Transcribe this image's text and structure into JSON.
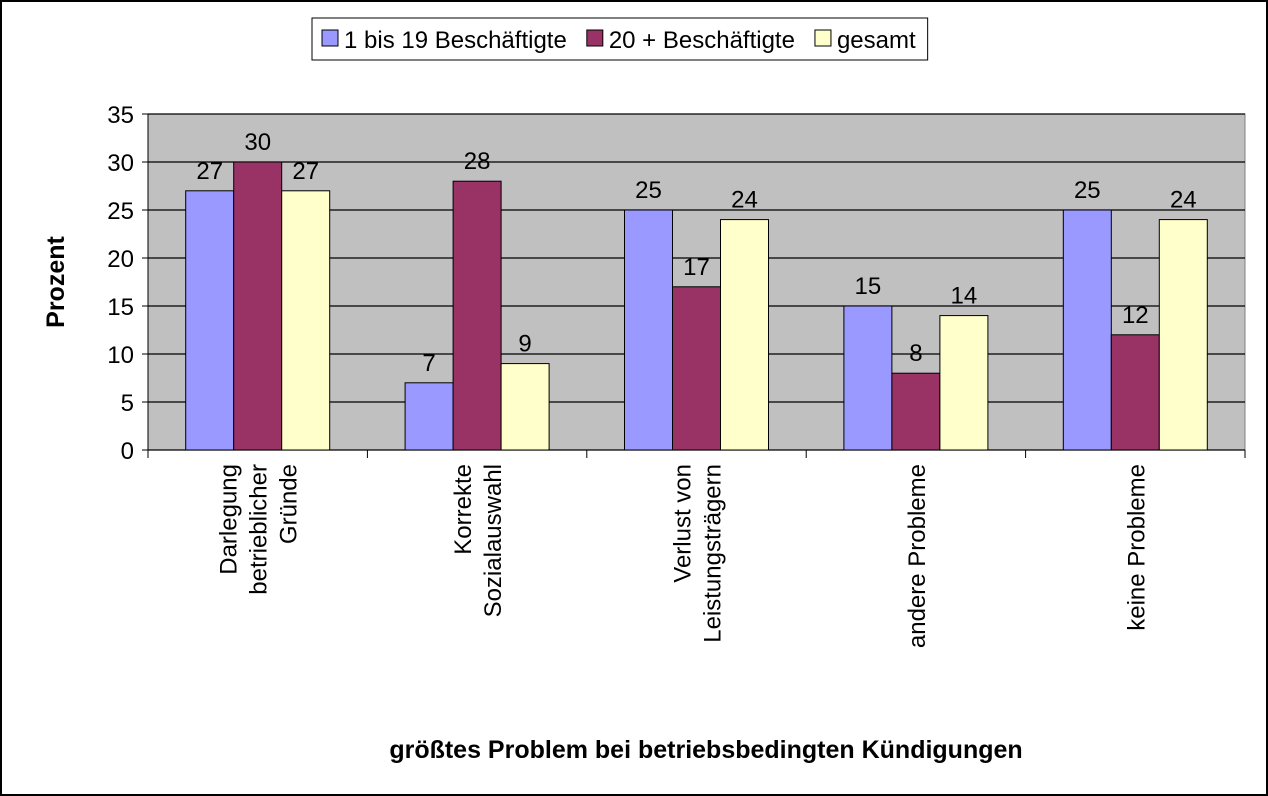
{
  "chart_data": {
    "type": "bar",
    "x_label": "größtes Problem bei betriebsbedingten Kündigungen",
    "y_label": "Prozent",
    "categories": [
      "Darlegung betrieblicher Gründe",
      "Korrekte Sozialauswahl",
      "Verlust von Leistungsträgern",
      "andere Probleme",
      "keine Probleme"
    ],
    "series": [
      {
        "name": "1 bis 19 Beschäftigte",
        "color": "#9999ff",
        "values": [
          27,
          7,
          25,
          15,
          25
        ]
      },
      {
        "name": "20 + Beschäftigte",
        "color": "#993366",
        "values": [
          30,
          28,
          17,
          8,
          12
        ]
      },
      {
        "name": "gesamt",
        "color": "#ffffcc",
        "values": [
          27,
          9,
          24,
          14,
          24
        ]
      }
    ],
    "ylim": [
      0,
      35
    ],
    "yticks": [
      0,
      5,
      10,
      15,
      20,
      25,
      30,
      35
    ],
    "grid": true,
    "legend": "top"
  }
}
